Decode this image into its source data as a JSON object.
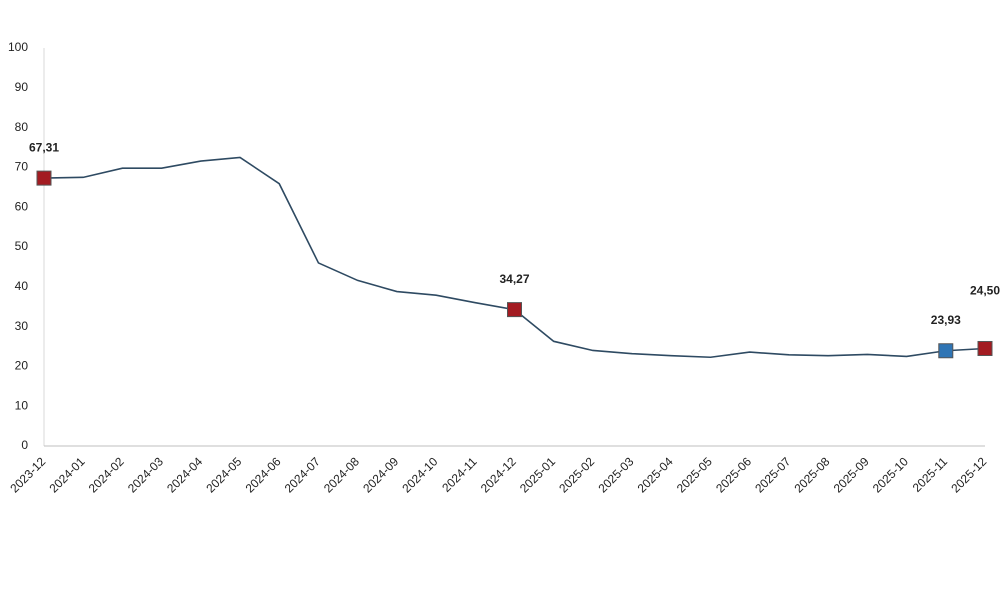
{
  "chart_data": {
    "type": "line",
    "categories": [
      "2023-12",
      "2024-01",
      "2024-02",
      "2024-03",
      "2024-04",
      "2024-05",
      "2024-06",
      "2024-07",
      "2024-08",
      "2024-09",
      "2024-10",
      "2024-11",
      "2024-12",
      "2025-01",
      "2025-02",
      "2025-03",
      "2025-04",
      "2025-05",
      "2025-06",
      "2025-07",
      "2025-08",
      "2025-09",
      "2025-10",
      "2025-11",
      "2025-12"
    ],
    "values": [
      67.31,
      67.5,
      69.8,
      69.8,
      71.6,
      72.5,
      65.9,
      46.0,
      41.6,
      38.8,
      37.9,
      36.0,
      34.27,
      26.3,
      24.0,
      23.2,
      22.7,
      22.3,
      23.6,
      22.9,
      22.7,
      23.0,
      22.5,
      23.93,
      24.5
    ],
    "value_labels": [
      "67,31",
      null,
      null,
      null,
      null,
      null,
      null,
      null,
      null,
      null,
      null,
      null,
      "34,27",
      null,
      null,
      null,
      null,
      null,
      null,
      null,
      null,
      null,
      null,
      "23,93",
      "24,50"
    ],
    "marker_colors": [
      "#a31b21",
      null,
      null,
      null,
      null,
      null,
      null,
      null,
      null,
      null,
      null,
      null,
      "#a31b21",
      null,
      null,
      null,
      null,
      null,
      null,
      null,
      null,
      null,
      null,
      "#2f75b5",
      "#a31b21"
    ],
    "color": "#2e4a62",
    "ylim": [
      0,
      100
    ],
    "yticks": [
      0,
      10,
      20,
      30,
      40,
      50,
      60,
      70,
      80,
      90,
      100
    ]
  }
}
